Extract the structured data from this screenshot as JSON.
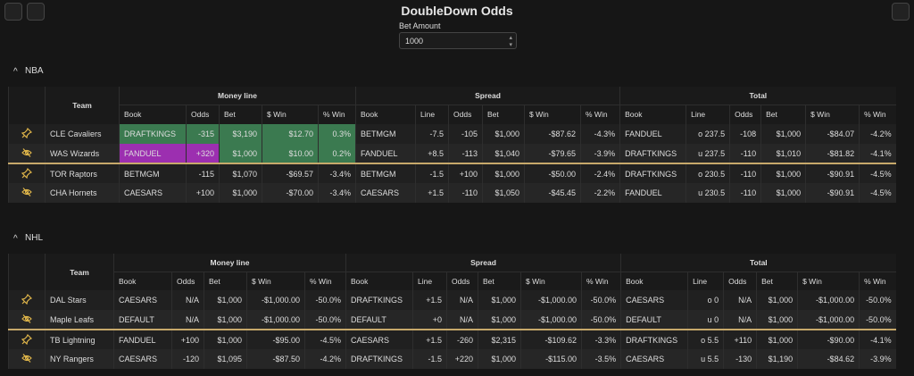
{
  "header": {
    "title": "DoubleDown Odds"
  },
  "bet_amount": {
    "label": "Bet Amount",
    "value": "1000"
  },
  "sections": [
    {
      "name": "NBA",
      "team_header": "Team",
      "group_headers": [
        "Money line",
        "Spread",
        "Total"
      ],
      "sub_headers": [
        "Book",
        "Odds",
        "Bet",
        "$ Win",
        "% Win",
        "Book",
        "Line",
        "Odds",
        "Bet",
        "$ Win",
        "% Win",
        "Book",
        "Line",
        "Odds",
        "Bet",
        "$ Win",
        "% Win"
      ],
      "rows": [
        {
          "team": "CLE Cavaliers",
          "cells": [
            "DRAFTKINGS",
            "-315",
            "$3,190",
            "$12.70",
            "0.3%",
            "BETMGM",
            "-7.5",
            "-105",
            "$1,000",
            "-$87.62",
            "-4.3%",
            "FANDUEL",
            "o 237.5",
            "-108",
            "$1,000",
            "-$84.07",
            "-4.2%"
          ]
        },
        {
          "team": "WAS Wizards",
          "cells": [
            "FANDUEL",
            "+320",
            "$1,000",
            "$10.00",
            "0.2%",
            "FANDUEL",
            "+8.5",
            "-113",
            "$1,040",
            "-$79.65",
            "-3.9%",
            "DRAFTKINGS",
            "u 237.5",
            "-110",
            "$1,010",
            "-$81.82",
            "-4.1%"
          ]
        },
        {
          "team": "TOR Raptors",
          "cells": [
            "BETMGM",
            "-115",
            "$1,070",
            "-$69.57",
            "-3.4%",
            "BETMGM",
            "-1.5",
            "+100",
            "$1,000",
            "-$50.00",
            "-2.4%",
            "DRAFTKINGS",
            "o 230.5",
            "-110",
            "$1,000",
            "-$90.91",
            "-4.5%"
          ]
        },
        {
          "team": "CHA Hornets",
          "cells": [
            "CAESARS",
            "+100",
            "$1,000",
            "-$70.00",
            "-3.4%",
            "CAESARS",
            "+1.5",
            "-110",
            "$1,050",
            "-$45.45",
            "-2.2%",
            "FANDUEL",
            "u 230.5",
            "-110",
            "$1,000",
            "-$90.91",
            "-4.5%"
          ]
        }
      ]
    },
    {
      "name": "NHL",
      "team_header": "Team",
      "group_headers": [
        "Money line",
        "Spread",
        "Total"
      ],
      "sub_headers": [
        "Book",
        "Odds",
        "Bet",
        "$ Win",
        "% Win",
        "Book",
        "Line",
        "Odds",
        "Bet",
        "$ Win",
        "% Win",
        "Book",
        "Line",
        "Odds",
        "Bet",
        "$ Win",
        "% Win"
      ],
      "rows": [
        {
          "team": "DAL Stars",
          "cells": [
            "CAESARS",
            "N/A",
            "$1,000",
            "-$1,000.00",
            "-50.0%",
            "DRAFTKINGS",
            "+1.5",
            "N/A",
            "$1,000",
            "-$1,000.00",
            "-50.0%",
            "CAESARS",
            "o 0",
            "N/A",
            "$1,000",
            "-$1,000.00",
            "-50.0%"
          ]
        },
        {
          "team": "Maple Leafs",
          "cells": [
            "DEFAULT",
            "N/A",
            "$1,000",
            "-$1,000.00",
            "-50.0%",
            "DEFAULT",
            "+0",
            "N/A",
            "$1,000",
            "-$1,000.00",
            "-50.0%",
            "DEFAULT",
            "u 0",
            "N/A",
            "$1,000",
            "-$1,000.00",
            "-50.0%"
          ]
        },
        {
          "team": "TB Lightning",
          "cells": [
            "FANDUEL",
            "+100",
            "$1,000",
            "-$95.00",
            "-4.5%",
            "CAESARS",
            "+1.5",
            "-260",
            "$2,315",
            "-$109.62",
            "-3.3%",
            "DRAFTKINGS",
            "o 5.5",
            "+110",
            "$1,000",
            "-$90.00",
            "-4.1%"
          ]
        },
        {
          "team": "NY Rangers",
          "cells": [
            "CAESARS",
            "-120",
            "$1,095",
            "-$87.50",
            "-4.2%",
            "DRAFTKINGS",
            "-1.5",
            "+220",
            "$1,000",
            "-$115.00",
            "-3.5%",
            "CAESARS",
            "u 5.5",
            "-130",
            "$1,190",
            "-$84.62",
            "-3.9%"
          ]
        }
      ]
    }
  ]
}
